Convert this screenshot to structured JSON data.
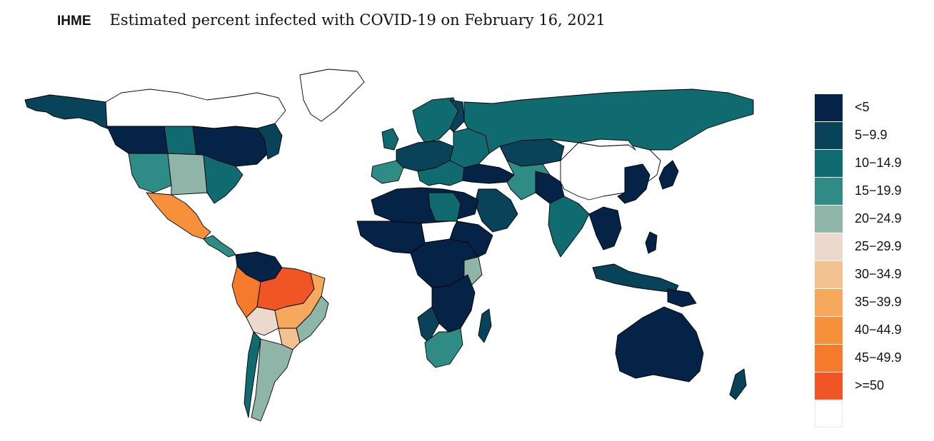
{
  "header": {
    "brand": "IHME",
    "title": "Estimated percent infected with COVID-19 on February 16, 2021"
  },
  "colors": {
    "c0": "#052346",
    "c1": "#09435a",
    "c2": "#106b70",
    "c3": "#2f8b86",
    "c4": "#8eb5a7",
    "c5": "#ead9cc",
    "c6": "#f2c291",
    "c7": "#f6a95c",
    "c8": "#f7903a",
    "c9": "#f57a2c",
    "c10": "#f05525",
    "nodata": "#ffffff"
  },
  "legend": {
    "items": [
      {
        "label": "<5",
        "color": "#052346"
      },
      {
        "label": "5−9.9",
        "color": "#09435a"
      },
      {
        "label": "10−14.9",
        "color": "#106b70"
      },
      {
        "label": "15−19.9",
        "color": "#2f8b86"
      },
      {
        "label": "20−24.9",
        "color": "#8eb5a7"
      },
      {
        "label": "25−29.9",
        "color": "#ead9cc"
      },
      {
        "label": "30−34.9",
        "color": "#f2c291"
      },
      {
        "label": "35−39.9",
        "color": "#f6a95c"
      },
      {
        "label": "40−44.9",
        "color": "#f7903a"
      },
      {
        "label": "45−49.9",
        "color": "#f57a2c"
      },
      {
        "label": ">=50",
        "color": "#f05525"
      },
      {
        "label": "",
        "color": "#ffffff"
      }
    ]
  }
}
